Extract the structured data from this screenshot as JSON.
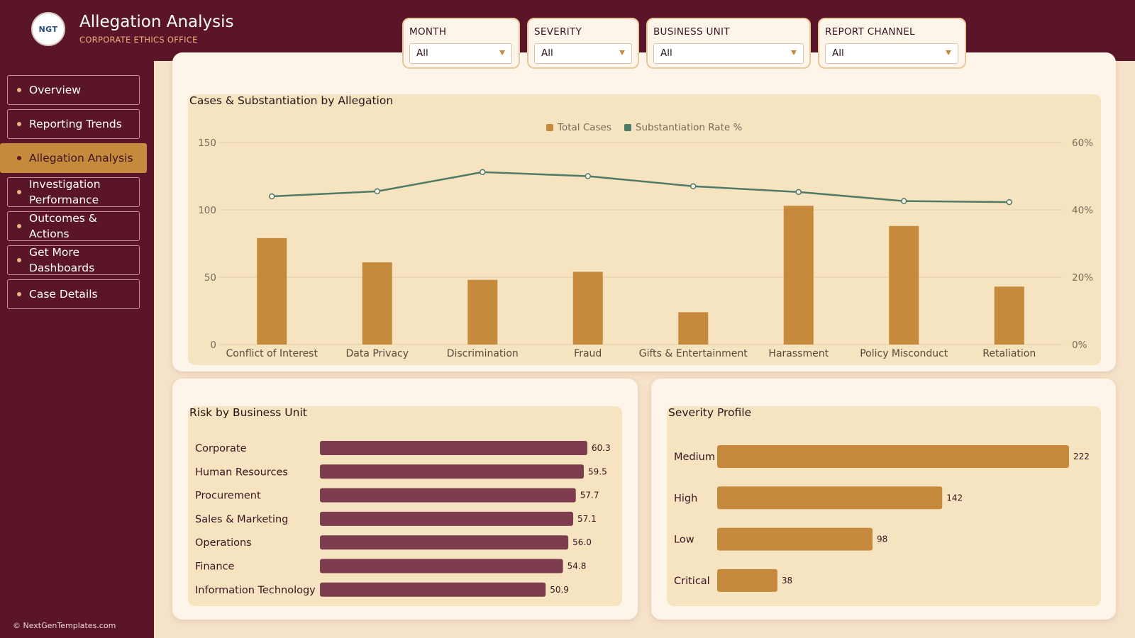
{
  "app": {
    "logo_text": "NGT",
    "title": "Allegation Analysis",
    "subtitle": "CORPORATE ETHICS OFFICE"
  },
  "filters": [
    {
      "label": "MONTH",
      "value": "All"
    },
    {
      "label": "SEVERITY",
      "value": "All"
    },
    {
      "label": "BUSINESS UNIT",
      "value": "All"
    },
    {
      "label": "REPORT CHANNEL",
      "value": "All"
    }
  ],
  "nav": [
    {
      "label": "Overview",
      "active": false
    },
    {
      "label": "Reporting Trends",
      "active": false
    },
    {
      "label": "Allegation Analysis",
      "active": true
    },
    {
      "label": "Investigation Performance",
      "active": false
    },
    {
      "label": "Outcomes & Actions",
      "active": false
    },
    {
      "label": "Get More Dashboards",
      "active": false
    },
    {
      "label": "Case Details",
      "active": false
    }
  ],
  "footer": {
    "copyright": "© NextGenTemplates.com"
  },
  "colors": {
    "maroon": "#5a1628",
    "gold": "#c68a3c",
    "line": "#4e7a68",
    "bar_maroon": "#7e3d4f"
  },
  "chart_data": [
    {
      "type": "bar",
      "title": "Cases & Substantiation by Allegation",
      "categories": [
        "Conflict of Interest",
        "Data Privacy",
        "Discrimination",
        "Fraud",
        "Gifts & Entertainment",
        "Harassment",
        "Policy Misconduct",
        "Retaliation"
      ],
      "series": [
        {
          "name": "Total Cases",
          "kind": "bar",
          "axis": "left",
          "color": "#c68a3c",
          "values": [
            79,
            61,
            48,
            54,
            24,
            103,
            88,
            43
          ]
        },
        {
          "name": "Substantiation Rate %",
          "kind": "line",
          "axis": "right",
          "color": "#4e7a68",
          "values": [
            44.0,
            45.5,
            51.2,
            50.0,
            47.0,
            45.3,
            42.6,
            42.3
          ]
        }
      ],
      "ylim": [
        0,
        150
      ],
      "yticks": [
        "0",
        "50",
        "100",
        "150"
      ],
      "y2lim": [
        0,
        60
      ],
      "y2ticks": [
        "0%",
        "20%",
        "40%",
        "60%"
      ],
      "legend": "top-center",
      "grid": true
    },
    {
      "type": "bar",
      "orientation": "horizontal",
      "title": "Risk by Business Unit",
      "categories": [
        "Corporate",
        "Human Resources",
        "Procurement",
        "Sales & Marketing",
        "Operations",
        "Finance",
        "Information Technology"
      ],
      "values": [
        60.3,
        59.5,
        57.7,
        57.1,
        56.0,
        54.8,
        50.9
      ],
      "value_labels": [
        "60.3",
        "59.5",
        "57.7",
        "57.1",
        "56.0",
        "54.8",
        "50.9"
      ],
      "color": "#7e3d4f",
      "xlim": [
        0,
        60.3
      ]
    },
    {
      "type": "bar",
      "orientation": "horizontal",
      "title": "Severity Profile",
      "categories": [
        "Medium",
        "High",
        "Low",
        "Critical"
      ],
      "values": [
        222,
        142,
        98,
        38
      ],
      "value_labels": [
        "222",
        "142",
        "98",
        "38"
      ],
      "color": "#c68a3c",
      "xlim": [
        0,
        222
      ]
    }
  ]
}
